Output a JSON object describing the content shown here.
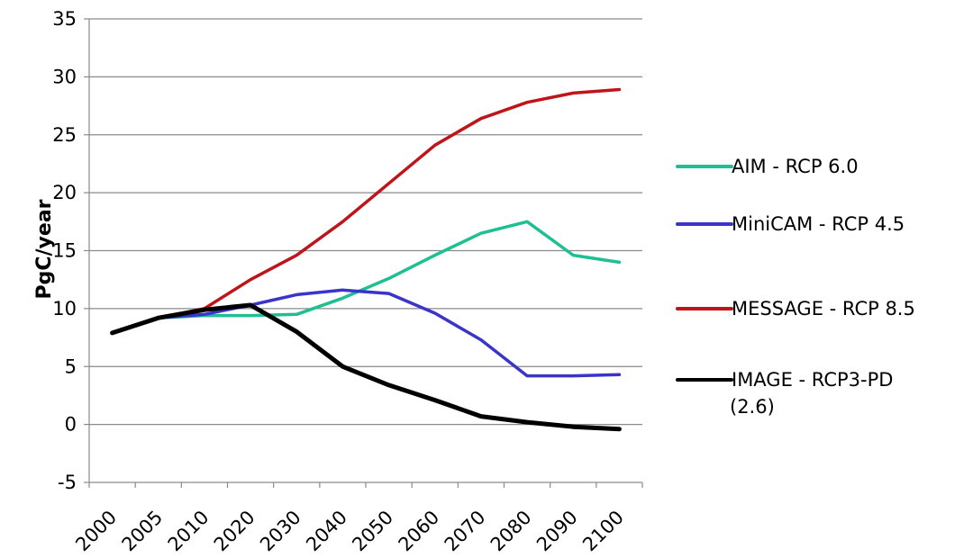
{
  "chart_data": {
    "type": "line",
    "title": "",
    "xlabel": "",
    "ylabel": "PgC/year",
    "ylim": [
      -5,
      35
    ],
    "yticks": [
      "-5",
      "0",
      "5",
      "10",
      "15",
      "20",
      "25",
      "30",
      "35"
    ],
    "categories": [
      "2000",
      "2005",
      "2010",
      "2020",
      "2030",
      "2040",
      "2050",
      "2060",
      "2070",
      "2080",
      "2090",
      "2100"
    ],
    "grid": "horizontal",
    "legend_position": "right",
    "series": [
      {
        "name": "AIM - RCP 6.0",
        "color": "#1dbf93",
        "values": [
          7.9,
          9.2,
          9.4,
          9.4,
          9.5,
          10.9,
          12.6,
          14.6,
          16.5,
          17.5,
          14.6,
          14.0
        ]
      },
      {
        "name": "MiniCAM - RCP 4.5",
        "color": "#3b34c8",
        "values": [
          7.9,
          9.2,
          9.5,
          10.3,
          11.2,
          11.6,
          11.3,
          9.6,
          7.3,
          4.2,
          4.2,
          4.3
        ]
      },
      {
        "name": "MESSAGE - RCP 8.5",
        "color": "#c0141b",
        "values": [
          7.9,
          9.2,
          10.0,
          12.5,
          14.6,
          17.5,
          20.8,
          24.1,
          26.4,
          27.8,
          28.6,
          28.9
        ]
      },
      {
        "name": "IMAGE - RCP3-PD (2.6)",
        "color": "#000000",
        "values": [
          7.9,
          9.2,
          9.9,
          10.3,
          8.0,
          5.0,
          3.4,
          2.1,
          0.7,
          0.2,
          -0.2,
          -0.4
        ]
      }
    ]
  }
}
